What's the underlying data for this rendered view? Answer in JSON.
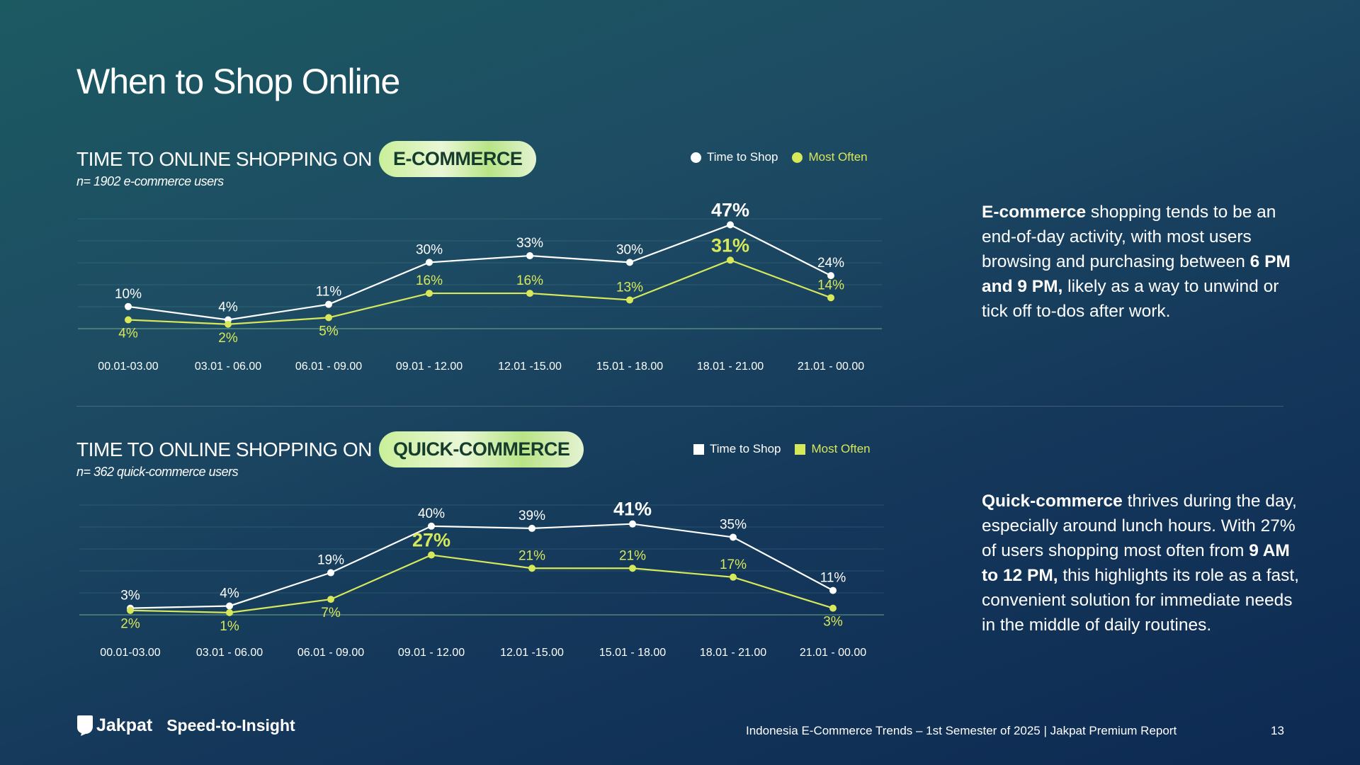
{
  "title": "When to Shop Online",
  "ecommerce": {
    "heading_prefix": "TIME TO ONLINE SHOPPING ON",
    "heading_pill": "E-COMMERCE",
    "sample": "n= 1902 e-commerce users",
    "legend": {
      "a": "Time to Shop",
      "b": "Most Often"
    },
    "insight": {
      "bold1": "E-commerce",
      "t1": " shopping tends to be an end-of-day activity, with most users browsing and purchasing between ",
      "bold2": "6 PM and 9 PM,",
      "t2": " likely as a way to unwind or tick off to-dos after work."
    }
  },
  "quickcommerce": {
    "heading_prefix": "TIME TO ONLINE SHOPPING ON",
    "heading_pill": "QUICK-COMMERCE",
    "sample": "n= 362 quick-commerce users",
    "legend": {
      "a": "Time to Shop",
      "b": "Most Often"
    },
    "insight": {
      "bold1": "Quick-commerce",
      "t1": " thrives during the day, especially around lunch hours. With 27% of users shopping most often from ",
      "bold2": "9 AM to 12 PM,",
      "t2": " this highlights its role as a fast, convenient solution for immediate needs in the middle of daily routines."
    }
  },
  "colors": {
    "white": "#ffffff",
    "yellow": "#d7e85a"
  },
  "chart_data": [
    {
      "type": "line",
      "title": "TIME TO ONLINE SHOPPING ON E-COMMERCE",
      "categories": [
        "00.01-03.00",
        "03.01 - 06.00",
        "06.01 - 09.00",
        "09.01 - 12.00",
        "12.01 -15.00",
        "15.01 - 18.00",
        "18.01 - 21.00",
        "21.01 - 00.00"
      ],
      "series": [
        {
          "name": "Time to Shop",
          "values": [
            10,
            4,
            11,
            30,
            33,
            30,
            47,
            24
          ],
          "highlight": 6
        },
        {
          "name": "Most Often",
          "values": [
            4,
            2,
            5,
            16,
            16,
            13,
            31,
            14
          ],
          "highlight": 6
        }
      ],
      "ylim": [
        0,
        50
      ],
      "legend": "top-right"
    },
    {
      "type": "line",
      "title": "TIME TO ONLINE SHOPPING ON QUICK-COMMERCE",
      "categories": [
        "00.01-03.00",
        "03.01 - 06.00",
        "06.01 - 09.00",
        "09.01 - 12.00",
        "12.01 -15.00",
        "15.01 - 18.00",
        "18.01 - 21.00",
        "21.01 - 00.00"
      ],
      "series": [
        {
          "name": "Time to Shop",
          "values": [
            3,
            4,
            19,
            40,
            39,
            41,
            35,
            11
          ],
          "highlight": 5
        },
        {
          "name": "Most Often",
          "values": [
            2,
            1,
            7,
            27,
            21,
            21,
            17,
            3
          ],
          "highlight": 3
        }
      ],
      "ylim": [
        0,
        50
      ],
      "legend": "top-right"
    }
  ],
  "footer": {
    "brand": "Jakpat",
    "tagline": "Speed-to-Insight",
    "report": "Indonesia E-Commerce Trends – 1st Semester of 2025 | Jakpat Premium Report",
    "page": "13"
  }
}
